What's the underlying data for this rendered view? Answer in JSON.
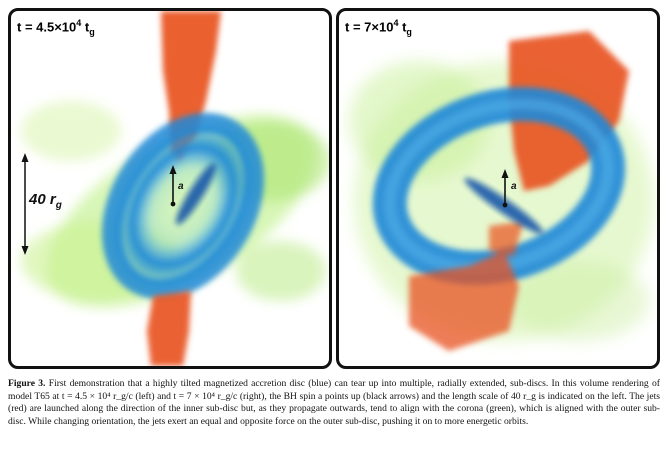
{
  "figure": {
    "left_panel": {
      "time_prefix": "t = 4.5×10",
      "time_exponent": "4",
      "time_unit": " t",
      "time_unit_sub": "g",
      "spin_label": "a",
      "scale_value": "40 r",
      "scale_sub": "g"
    },
    "right_panel": {
      "time_prefix": "t = 7×10",
      "time_exponent": "4",
      "time_unit": " t",
      "time_unit_sub": "g",
      "spin_label": "a"
    },
    "colors": {
      "jet": "#e8521f",
      "disc": "#1e88d8",
      "inner_disc": "#0d4fa8",
      "corona": "#a6e36a",
      "frame": "#111111"
    }
  },
  "caption": {
    "label": "Figure 3.",
    "text": "First demonstration that a highly tilted magnetized accretion disc (blue) can tear up into multiple, radially extended, sub-discs. In this volume rendering of model T65 at t = 4.5 × 10⁴ r_g/c (left) and t = 7 × 10⁴ r_g/c (right), the BH spin a points up (black arrows) and the length scale of 40 r_g is indicated on the left. The jets (red) are launched along the direction of the inner sub-disc but, as they propagate outwards, tend to align with the corona (green), which is aligned with the outer sub-disc. While changing orientation, the jets exert an equal and opposite force on the outer sub-disc, pushing it on to more energetic orbits."
  }
}
